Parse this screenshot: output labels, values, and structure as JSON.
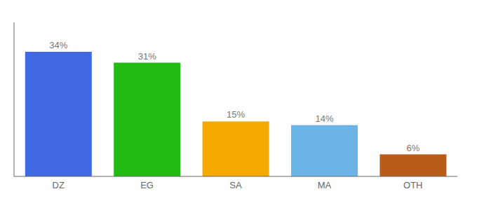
{
  "chart_data": {
    "type": "bar",
    "categories": [
      "DZ",
      "EG",
      "SA",
      "MA",
      "OTH"
    ],
    "values": [
      34,
      31,
      15,
      14,
      6
    ],
    "value_labels": [
      "34%",
      "31%",
      "15%",
      "14%",
      "6%"
    ],
    "data_labels": true,
    "colors": [
      "#4169e1",
      "#22bb14",
      "#f5a800",
      "#6ab4e8",
      "#b85c1a"
    ],
    "ylim": [
      0,
      42
    ],
    "tick_labels": "x"
  }
}
